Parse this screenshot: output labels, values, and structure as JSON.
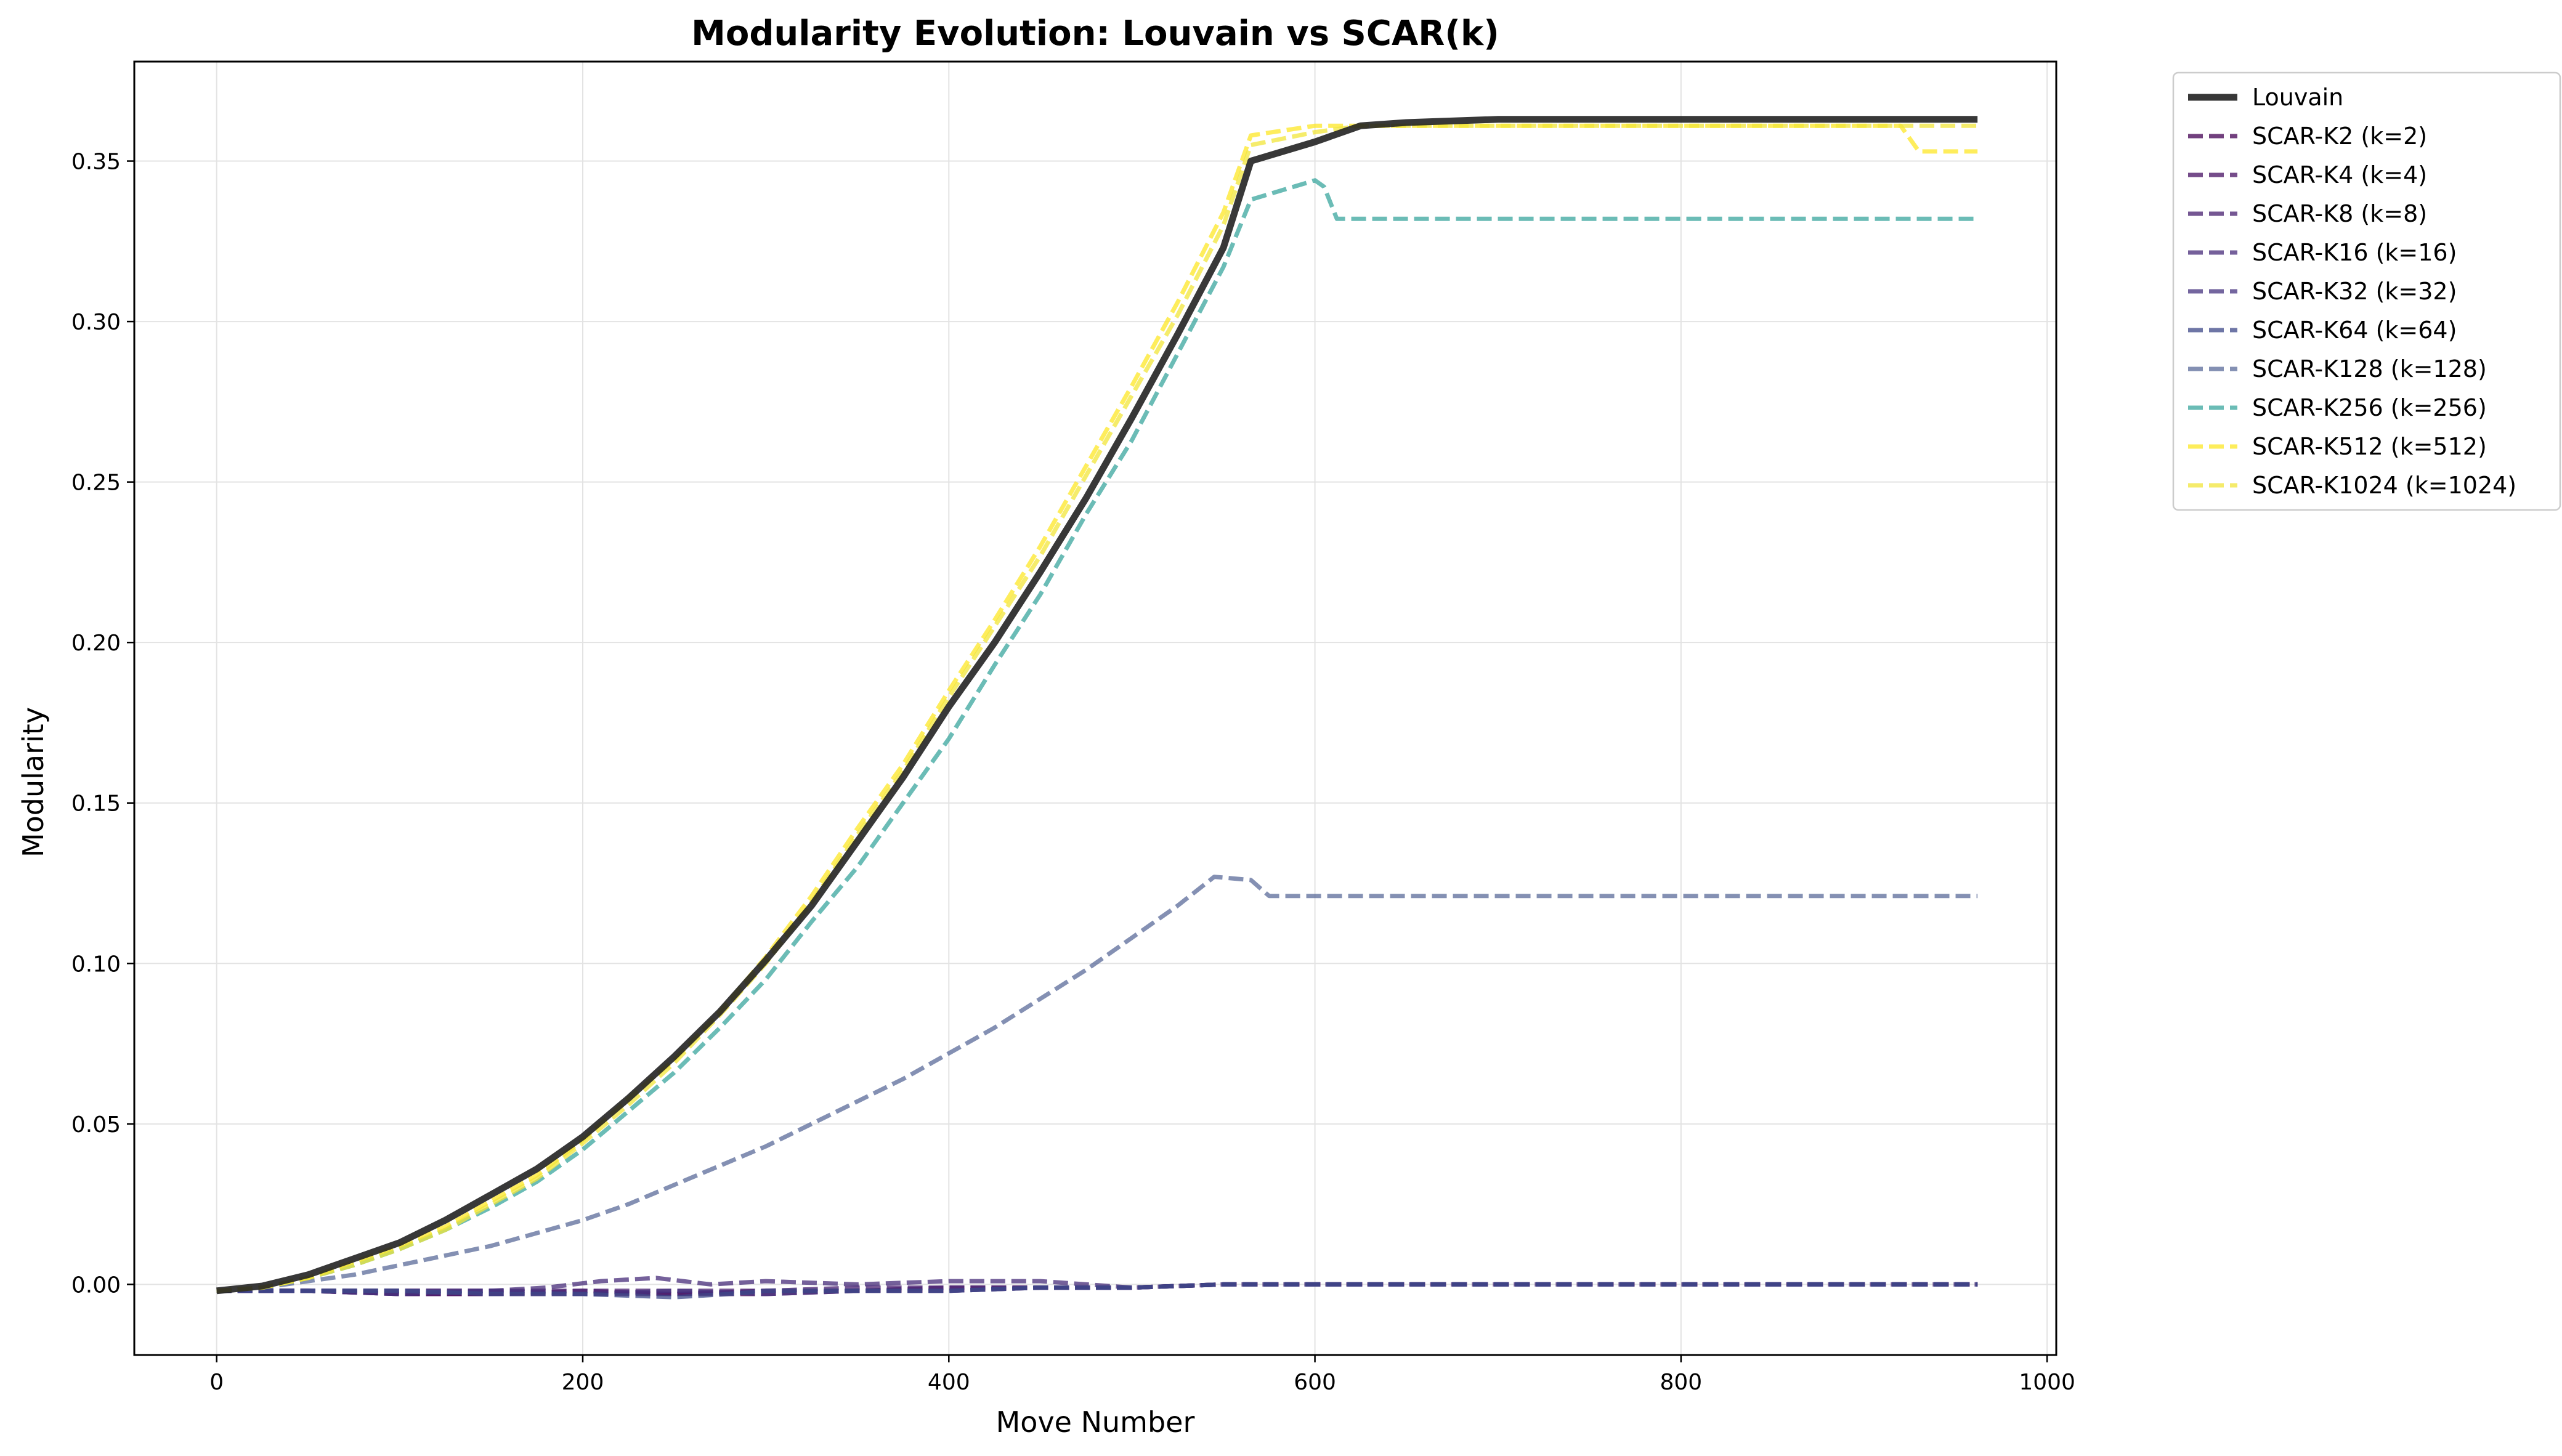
{
  "chart_data": {
    "type": "line",
    "title": "Modularity Evolution: Louvain vs SCAR(k)",
    "xlabel": "Move Number",
    "ylabel": "Modularity",
    "xlim": [
      -45,
      1005
    ],
    "ylim": [
      -0.022,
      0.381
    ],
    "xticks": [
      0,
      200,
      400,
      600,
      800,
      1000
    ],
    "yticks": [
      0.0,
      0.05,
      0.1,
      0.15,
      0.2,
      0.25,
      0.3,
      0.35
    ],
    "xtick_labels": [
      "0",
      "200",
      "400",
      "600",
      "800",
      "1000"
    ],
    "ytick_labels": [
      "0.00",
      "0.05",
      "0.10",
      "0.15",
      "0.20",
      "0.25",
      "0.30",
      "0.35"
    ],
    "grid": true,
    "legend_position": "outside-top-right",
    "series": [
      {
        "name": "Louvain",
        "color": "#222222",
        "style": "solid",
        "x": [
          0,
          25,
          50,
          75,
          100,
          125,
          150,
          175,
          200,
          225,
          250,
          275,
          300,
          325,
          350,
          375,
          400,
          425,
          450,
          475,
          500,
          525,
          550,
          565,
          600,
          625,
          650,
          700,
          800,
          900,
          962
        ],
        "y": [
          -0.002,
          -0.0005,
          0.003,
          0.008,
          0.013,
          0.02,
          0.028,
          0.036,
          0.046,
          0.058,
          0.071,
          0.085,
          0.101,
          0.118,
          0.138,
          0.158,
          0.18,
          0.2,
          0.222,
          0.245,
          0.27,
          0.296,
          0.323,
          0.35,
          0.356,
          0.361,
          0.362,
          0.363,
          0.363,
          0.363,
          0.363
        ]
      },
      {
        "name": "SCAR-K2 (k=2)",
        "color": "#440154",
        "style": "dashed",
        "x": [
          0,
          50,
          100,
          150,
          200,
          250,
          300,
          350,
          400,
          450,
          500,
          550,
          600,
          700,
          800,
          962
        ],
        "y": [
          -0.002,
          -0.002,
          -0.003,
          -0.003,
          -0.003,
          -0.003,
          -0.003,
          -0.002,
          -0.002,
          -0.001,
          -0.001,
          0.0,
          0.0,
          0.0,
          0.0,
          0.0
        ]
      },
      {
        "name": "SCAR-K4 (k=4)",
        "color": "#471164",
        "style": "dashed",
        "x": [
          0,
          50,
          100,
          150,
          200,
          250,
          300,
          350,
          400,
          450,
          500,
          550,
          600,
          700,
          800,
          962
        ],
        "y": [
          -0.002,
          -0.002,
          -0.003,
          -0.003,
          -0.002,
          -0.003,
          -0.002,
          -0.002,
          -0.001,
          -0.001,
          -0.001,
          0.0,
          0.0,
          0.0,
          0.0,
          0.0
        ]
      },
      {
        "name": "SCAR-K8 (k=8)",
        "color": "#481f70",
        "style": "dashed",
        "x": [
          0,
          50,
          100,
          150,
          200,
          250,
          300,
          350,
          400,
          450,
          500,
          550,
          600,
          700,
          800,
          962
        ],
        "y": [
          -0.002,
          -0.002,
          -0.002,
          -0.002,
          -0.002,
          -0.002,
          -0.002,
          -0.001,
          -0.001,
          -0.001,
          -0.001,
          0.0,
          0.0,
          0.0,
          0.0,
          0.0
        ]
      },
      {
        "name": "SCAR-K16 (k=16)",
        "color": "#472c7a",
        "style": "dashed",
        "x": [
          0,
          50,
          100,
          150,
          180,
          210,
          240,
          270,
          300,
          350,
          400,
          450,
          500,
          550,
          600,
          700,
          800,
          962
        ],
        "y": [
          -0.002,
          -0.002,
          -0.002,
          -0.002,
          -0.001,
          0.001,
          0.002,
          0.0,
          0.001,
          0.0,
          0.001,
          0.001,
          -0.001,
          0.0,
          0.0,
          0.0,
          0.0,
          0.0
        ]
      },
      {
        "name": "SCAR-K32 (k=32)",
        "color": "#46337f",
        "style": "dashed",
        "x": [
          0,
          50,
          100,
          150,
          200,
          250,
          300,
          350,
          400,
          450,
          500,
          550,
          600,
          700,
          800,
          962
        ],
        "y": [
          -0.002,
          -0.002,
          -0.003,
          -0.002,
          -0.003,
          -0.002,
          -0.003,
          -0.002,
          -0.002,
          -0.001,
          -0.001,
          0.0,
          0.0,
          0.0,
          0.0,
          0.0
        ]
      },
      {
        "name": "SCAR-K64 (k=64)",
        "color": "#3e4989",
        "style": "dashed",
        "x": [
          0,
          50,
          100,
          150,
          200,
          250,
          280,
          300,
          350,
          400,
          450,
          500,
          550,
          600,
          700,
          800,
          962
        ],
        "y": [
          -0.002,
          -0.002,
          -0.002,
          -0.003,
          -0.003,
          -0.004,
          -0.003,
          -0.002,
          -0.002,
          -0.002,
          -0.001,
          -0.001,
          0.0,
          0.0,
          0.0,
          0.0,
          0.0
        ]
      },
      {
        "name": "SCAR-K128 (k=128)",
        "color": "#5b6b9a",
        "style": "dashed",
        "x": [
          0,
          25,
          50,
          75,
          100,
          125,
          150,
          175,
          200,
          225,
          250,
          275,
          300,
          325,
          350,
          375,
          400,
          425,
          450,
          475,
          500,
          525,
          545,
          565,
          575,
          600,
          700,
          800,
          900,
          962
        ],
        "y": [
          -0.002,
          -0.001,
          0.001,
          0.003,
          0.006,
          0.009,
          0.012,
          0.016,
          0.02,
          0.025,
          0.031,
          0.037,
          0.043,
          0.05,
          0.057,
          0.064,
          0.072,
          0.08,
          0.089,
          0.098,
          0.108,
          0.118,
          0.127,
          0.126,
          0.121,
          0.121,
          0.121,
          0.121,
          0.121,
          0.121
        ]
      },
      {
        "name": "SCAR-K256 (k=256)",
        "color": "#3aa69e",
        "style": "dashed",
        "x": [
          0,
          25,
          50,
          75,
          100,
          125,
          150,
          175,
          200,
          225,
          250,
          275,
          300,
          325,
          350,
          375,
          400,
          425,
          450,
          475,
          500,
          525,
          550,
          565,
          600,
          605,
          612,
          650,
          700,
          800,
          900,
          962
        ],
        "y": [
          -0.002,
          -0.001,
          0.002,
          0.006,
          0.011,
          0.017,
          0.024,
          0.032,
          0.042,
          0.054,
          0.066,
          0.08,
          0.095,
          0.113,
          0.13,
          0.15,
          0.17,
          0.193,
          0.215,
          0.24,
          0.263,
          0.29,
          0.317,
          0.338,
          0.344,
          0.342,
          0.332,
          0.332,
          0.332,
          0.332,
          0.332,
          0.332
        ]
      },
      {
        "name": "SCAR-K512 (k=512)",
        "color": "#fde725",
        "style": "dashed",
        "x": [
          0,
          25,
          50,
          75,
          100,
          125,
          150,
          175,
          200,
          225,
          250,
          275,
          300,
          325,
          350,
          375,
          400,
          425,
          450,
          475,
          500,
          525,
          550,
          565,
          600,
          625,
          700,
          800,
          900,
          920,
          930,
          962
        ],
        "y": [
          -0.002,
          -0.001,
          0.002,
          0.007,
          0.012,
          0.018,
          0.026,
          0.034,
          0.045,
          0.058,
          0.07,
          0.085,
          0.102,
          0.121,
          0.142,
          0.162,
          0.185,
          0.207,
          0.23,
          0.255,
          0.28,
          0.306,
          0.334,
          0.358,
          0.361,
          0.361,
          0.361,
          0.361,
          0.361,
          0.361,
          0.353,
          0.353
        ]
      },
      {
        "name": "SCAR-K1024 (k=1024)",
        "color": "#f2e53a",
        "style": "dashed",
        "x": [
          0,
          25,
          50,
          75,
          100,
          125,
          150,
          175,
          200,
          225,
          250,
          275,
          300,
          325,
          350,
          375,
          400,
          425,
          450,
          475,
          500,
          525,
          550,
          565,
          600,
          625,
          700,
          800,
          900,
          962
        ],
        "y": [
          -0.002,
          -0.001,
          0.002,
          0.006,
          0.011,
          0.017,
          0.025,
          0.033,
          0.044,
          0.056,
          0.069,
          0.084,
          0.1,
          0.119,
          0.14,
          0.16,
          0.183,
          0.205,
          0.227,
          0.252,
          0.277,
          0.302,
          0.33,
          0.355,
          0.359,
          0.361,
          0.361,
          0.361,
          0.361,
          0.361
        ]
      }
    ]
  }
}
